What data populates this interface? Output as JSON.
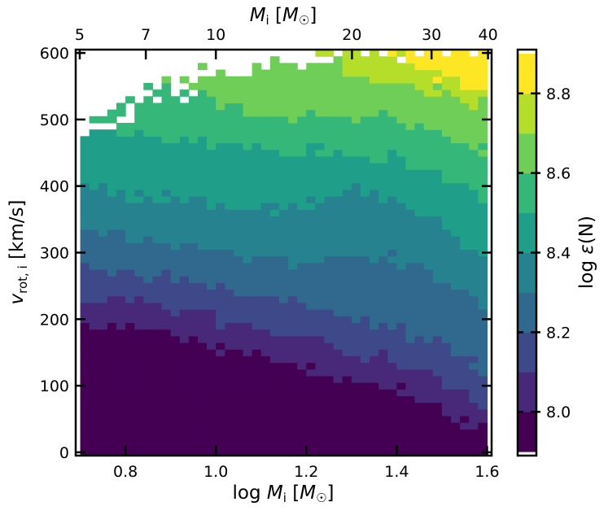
{
  "chart_data": {
    "type": "heatmap",
    "title": "",
    "xlabel": "log M_i [M_☉]",
    "xlabel_parts": [
      "log ",
      "M",
      "i",
      " [",
      "M",
      "☉",
      "]"
    ],
    "ylabel": "v_rot,i [km/s]",
    "ylabel_parts": [
      "v",
      "rot, i",
      " [km/s]"
    ],
    "top_xlabel": "M_i [M_☉]",
    "top_xlabel_parts": [
      "M",
      "i",
      " [",
      "M",
      "☉",
      "]"
    ],
    "colorbar_label": "log ε(N)",
    "colorbar_label_parts": [
      "log ",
      "ε",
      "(N)"
    ],
    "xlim": [
      0.69,
      1.61
    ],
    "ylim": [
      -5,
      605
    ],
    "x_ticks": [
      "0.8",
      "1.0",
      "1.2",
      "1.4",
      "1.6"
    ],
    "x_tick_values": [
      0.8,
      1.0,
      1.2,
      1.4,
      1.6
    ],
    "y_ticks": [
      "0",
      "100",
      "200",
      "300",
      "400",
      "500",
      "600"
    ],
    "y_tick_values": [
      0,
      100,
      200,
      300,
      400,
      500,
      600
    ],
    "top_ticks": [
      "5",
      "7",
      "10",
      "20",
      "30",
      "40"
    ],
    "top_tick_values": [
      5,
      7,
      10,
      20,
      30,
      40
    ],
    "colorbar_range": [
      7.89,
      8.91
    ],
    "colorbar_ticks": [
      "8.0",
      "8.2",
      "8.4",
      "8.6",
      "8.8"
    ],
    "colorbar_tick_values": [
      8.0,
      8.2,
      8.4,
      8.6,
      8.8
    ],
    "levels": [
      7.9,
      8.0,
      8.1,
      8.2,
      8.3,
      8.4,
      8.5,
      8.6,
      8.7,
      8.8,
      8.9
    ],
    "level_colors": [
      "#440154",
      "#482878",
      "#3e4989",
      "#31688e",
      "#26828e",
      "#1f9e89",
      "#35b779",
      "#6ece58",
      "#b5de2b",
      "#fde725"
    ],
    "grid": {
      "x_bin_width": 0.02,
      "y_bin_height": 10,
      "columns_x": [
        0.7,
        1.6
      ],
      "rows_v": [
        0,
        600
      ]
    },
    "level_boundaries_v": {
      "x": [
        0.7,
        0.8,
        0.9,
        1.0,
        1.1,
        1.2,
        1.3,
        1.4,
        1.5,
        1.6
      ],
      "b1": [
        195,
        185,
        175,
        160,
        145,
        130,
        110,
        95,
        70,
        30
      ],
      "b2": [
        235,
        225,
        215,
        200,
        185,
        170,
        150,
        135,
        110,
        70
      ],
      "b3": [
        280,
        270,
        262,
        250,
        235,
        220,
        205,
        185,
        160,
        120
      ],
      "b4": [
        335,
        325,
        315,
        305,
        295,
        285,
        300,
        290,
        260,
        215
      ],
      "b5": [
        400,
        390,
        380,
        370,
        365,
        375,
        395,
        380,
        345,
        290
      ],
      "b6": [
        490,
        480,
        470,
        460,
        455,
        455,
        450,
        440,
        415,
        380
      ],
      "b7": [
        640,
        580,
        550,
        530,
        510,
        505,
        505,
        500,
        480,
        450
      ],
      "b8": [
        700,
        700,
        700,
        640,
        610,
        600,
        575,
        555,
        540,
        525
      ],
      "b9": [
        700,
        700,
        700,
        700,
        700,
        700,
        650,
        600,
        560,
        540
      ]
    },
    "upper_edge_v": {
      "x": [
        0.7,
        0.75,
        0.8,
        0.85,
        0.9,
        1.0,
        1.1,
        1.2,
        1.3,
        1.4,
        1.5,
        1.6
      ],
      "v": [
        480,
        490,
        510,
        535,
        545,
        565,
        580,
        590,
        610,
        610,
        610,
        610
      ]
    }
  }
}
